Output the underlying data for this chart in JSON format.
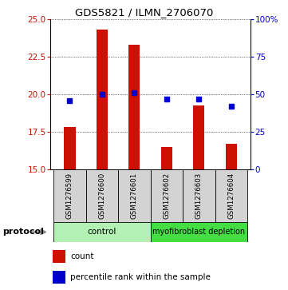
{
  "title": "GDS5821 / ILMN_2706070",
  "samples": [
    "GSM1276599",
    "GSM1276600",
    "GSM1276601",
    "GSM1276602",
    "GSM1276603",
    "GSM1276604"
  ],
  "counts": [
    17.82,
    24.28,
    23.28,
    16.5,
    19.28,
    16.72
  ],
  "percentiles": [
    46,
    50,
    51,
    47,
    47,
    42
  ],
  "ylim_left": [
    15,
    25
  ],
  "ylim_right": [
    0,
    100
  ],
  "yticks_left": [
    15,
    17.5,
    20,
    22.5,
    25
  ],
  "yticks_right": [
    0,
    25,
    50,
    75,
    100
  ],
  "bar_color": "#cc1100",
  "dot_color": "#0000cc",
  "bar_bottom": 15,
  "groups": [
    {
      "label": "control",
      "n": 3,
      "color": "#b3f0b3"
    },
    {
      "label": "myofibroblast depletion",
      "n": 3,
      "color": "#44dd44"
    }
  ],
  "protocol_label": "protocol",
  "legend_count_label": "count",
  "legend_percentile_label": "percentile rank within the sample",
  "sample_bg_color": "#d3d3d3",
  "bar_width": 0.35
}
